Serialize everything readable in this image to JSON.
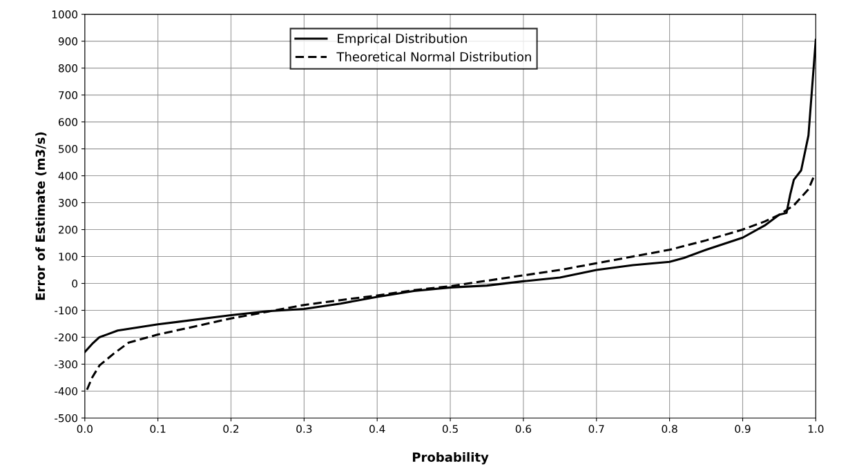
{
  "chart_data": {
    "type": "line",
    "xlabel": "Probability",
    "ylabel": "Error of Estimate (m3/s)",
    "xlim": [
      0,
      1
    ],
    "ylim": [
      -500,
      1000
    ],
    "xticks": [
      {
        "value": 0,
        "label": "0.0"
      },
      0.1,
      0.2,
      0.3,
      0.4,
      0.5,
      0.6,
      0.7,
      0.8,
      0.9,
      {
        "value": 1,
        "label": "1.0"
      }
    ],
    "yticks": [
      -500,
      -400,
      -300,
      -200,
      -100,
      0,
      100,
      200,
      300,
      400,
      500,
      600,
      700,
      800,
      900,
      1000
    ],
    "grid": true,
    "legend": "top",
    "marker": "none",
    "series": [
      {
        "name": "Emprical Distribution",
        "color": "#000000",
        "line_style": "solid",
        "x": [
          0,
          0.01,
          0.02,
          0.03,
          0.045,
          0.1,
          0.2,
          0.25,
          0.3,
          0.35,
          0.4,
          0.45,
          0.5,
          0.55,
          0.6,
          0.65,
          0.7,
          0.75,
          0.8,
          0.82,
          0.85,
          0.9,
          0.93,
          0.95,
          0.96,
          0.965,
          0.97,
          0.98,
          0.99,
          1.0
        ],
        "values": [
          -255,
          -225,
          -200,
          -190,
          -175,
          -152,
          -118,
          -103,
          -95,
          -75,
          -50,
          -28,
          -15,
          -8,
          8,
          22,
          50,
          68,
          80,
          95,
          125,
          170,
          215,
          255,
          262,
          330,
          385,
          420,
          550,
          905
        ]
      },
      {
        "name": "Theoretical Normal Distribution",
        "color": "#000000",
        "line_style": "dashed",
        "x": [
          0.003,
          0.01,
          0.02,
          0.04,
          0.06,
          0.1,
          0.15,
          0.2,
          0.25,
          0.3,
          0.35,
          0.4,
          0.45,
          0.5,
          0.55,
          0.6,
          0.65,
          0.7,
          0.75,
          0.8,
          0.85,
          0.9,
          0.93,
          0.95,
          0.97,
          0.99,
          0.997
        ],
        "values": [
          -395,
          -350,
          -305,
          -260,
          -220,
          -190,
          -160,
          -130,
          -105,
          -80,
          -62,
          -45,
          -25,
          -10,
          10,
          30,
          50,
          75,
          100,
          125,
          160,
          200,
          230,
          255,
          290,
          350,
          395
        ]
      }
    ]
  }
}
